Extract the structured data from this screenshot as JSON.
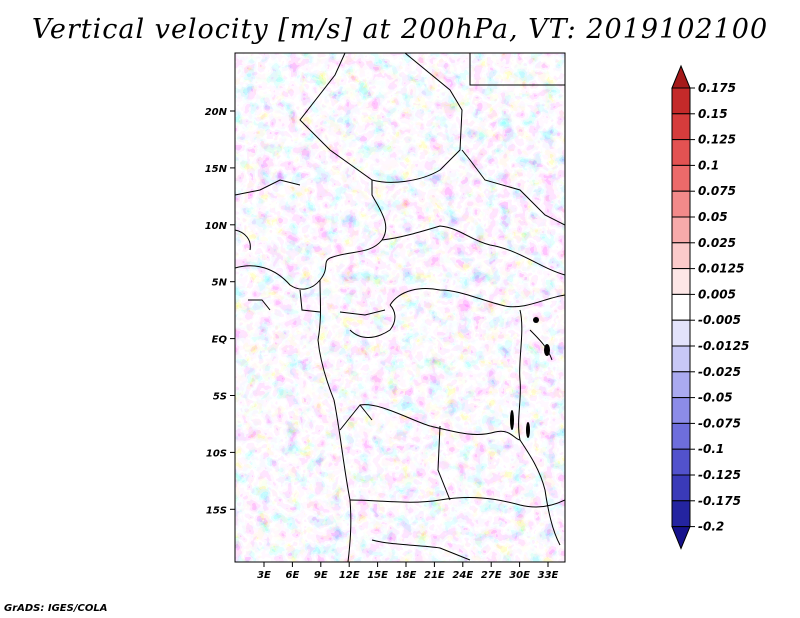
{
  "title": "Vertical velocity [m/s] at 200hPa, VT: 2019102100",
  "credit": "GrADS: IGES/COLA",
  "map": {
    "lat_labels": [
      "20N",
      "15N",
      "10N",
      "5N",
      "EQ",
      "5S",
      "10S",
      "15S"
    ],
    "lon_labels": [
      "3E",
      "6E",
      "9E",
      "12E",
      "15E",
      "18E",
      "21E",
      "24E",
      "27E",
      "30E",
      "33E"
    ]
  },
  "colorbar": {
    "levels": [
      "0.175",
      "0.15",
      "0.125",
      "0.1",
      "0.075",
      "0.05",
      "0.025",
      "0.0125",
      "0.005",
      "-0.005",
      "-0.0125",
      "-0.025",
      "-0.05",
      "-0.075",
      "-0.1",
      "-0.125",
      "-0.175",
      "-0.2"
    ],
    "colors": [
      "#a51a1a",
      "#c42a2a",
      "#d63c3c",
      "#e35252",
      "#ec6a6a",
      "#f28a8a",
      "#f7aaaa",
      "#fbcaca",
      "#fde6e6",
      "#ffffff",
      "#e3e3fb",
      "#c8c8f6",
      "#aaaaf0",
      "#8c8ce8",
      "#6e6edc",
      "#5252cc",
      "#3a3ab8",
      "#2424a0",
      "#16128c"
    ]
  }
}
